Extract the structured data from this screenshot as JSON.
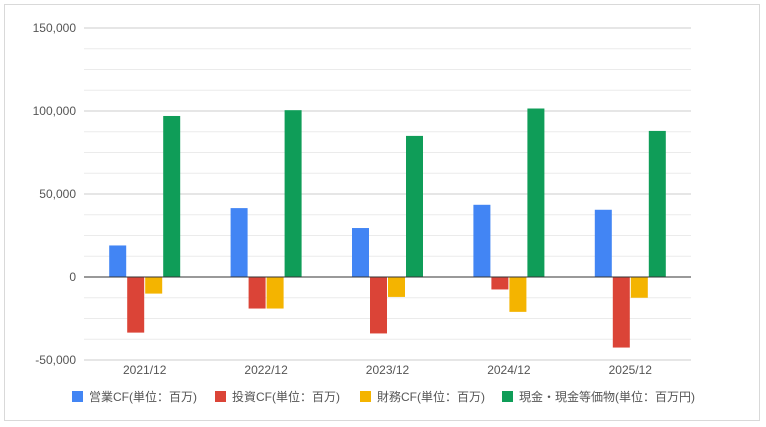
{
  "chart_data": {
    "type": "bar",
    "title": "",
    "xlabel": "",
    "ylabel": "",
    "categories": [
      "2021/12",
      "2022/12",
      "2023/12",
      "2024/12",
      "2025/12"
    ],
    "ylim": [
      -50000,
      150000
    ],
    "yticks": [
      -50000,
      0,
      50000,
      100000,
      150000
    ],
    "ytick_labels": [
      "-50,000",
      "0",
      "50,000",
      "100,000",
      "150,000"
    ],
    "grid": true,
    "legend_position": "bottom",
    "series": [
      {
        "name": "営業CF(単位：百万)",
        "color": "#4285f4",
        "values": [
          19000,
          41500,
          29500,
          43500,
          40500
        ]
      },
      {
        "name": "投資CF(単位：百万)",
        "color": "#db4437",
        "values": [
          -33500,
          -19000,
          -34000,
          -7500,
          -42500
        ]
      },
      {
        "name": "財務CF(単位：百万)",
        "color": "#f4b400",
        "values": [
          -10000,
          -19000,
          -12000,
          -21000,
          -12500
        ]
      },
      {
        "name": "現金・現金等価物(単位：百万円)",
        "color": "#0f9d58",
        "values": [
          97000,
          100500,
          85000,
          101500,
          88000
        ]
      }
    ]
  }
}
